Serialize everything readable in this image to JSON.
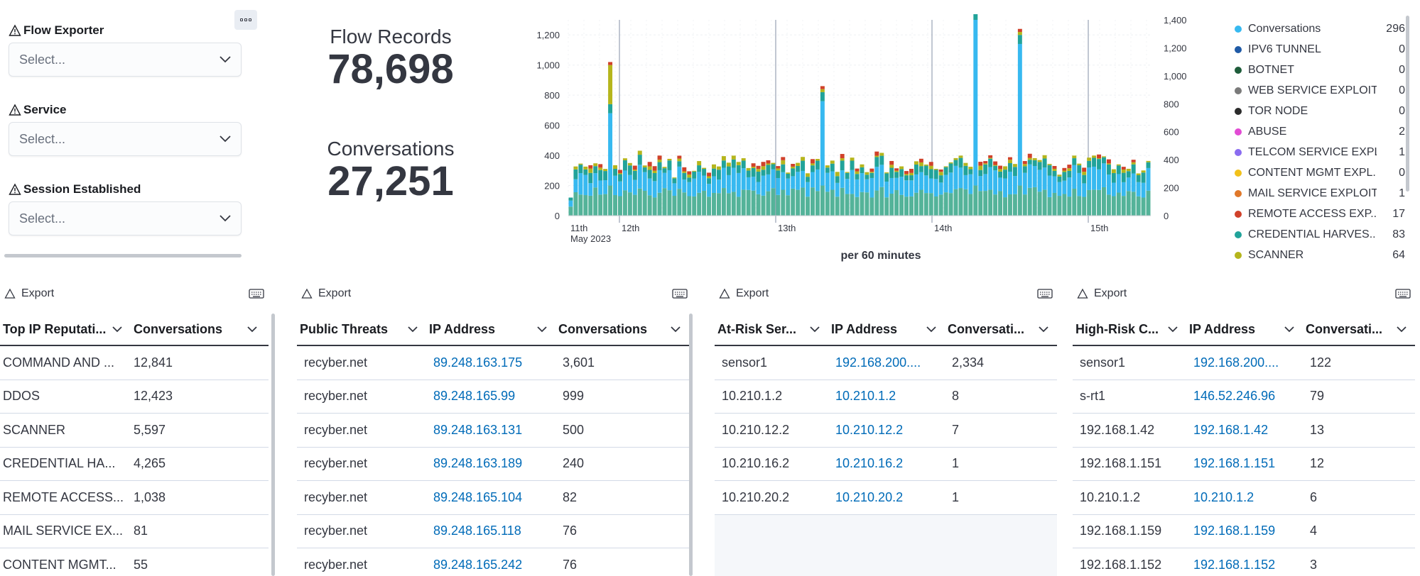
{
  "controls": {
    "exporter": {
      "label": "Flow Exporter",
      "placeholder": "Select..."
    },
    "service": {
      "label": "Service",
      "placeholder": "Select..."
    },
    "session": {
      "label": "Session Established",
      "placeholder": "Select..."
    }
  },
  "metrics": {
    "flow_records": {
      "label": "Flow Records",
      "value": "78,698"
    },
    "conversations": {
      "label": "Conversations",
      "value": "27,251"
    }
  },
  "chart_data": {
    "type": "bar",
    "stacked": true,
    "xlabel": "per 60 minutes",
    "x_ticks": [
      "11th",
      "12th",
      "13th",
      "14th",
      "15th"
    ],
    "x_sub_tick": "May 2023",
    "y_left_ticks": [
      0,
      200,
      400,
      600,
      800,
      1000,
      1200
    ],
    "y_right_ticks": [
      0,
      200,
      400,
      600,
      800,
      1000,
      1200,
      1400
    ],
    "ylim": [
      0,
      1400
    ],
    "spikes_approx": [
      {
        "near": "12th",
        "value": 1020
      },
      {
        "near": "13th",
        "value": 860
      },
      {
        "near": "14th",
        "value": 1400
      },
      {
        "near": "15th",
        "value": 1240
      }
    ],
    "series_colors": {
      "green": "#54b399",
      "blue": "#37b9f0",
      "teal": "#21a39a",
      "olive": "#b5b51c",
      "red": "#d0412a"
    },
    "legend": [
      {
        "name": "Conversations",
        "value": "296",
        "color": "#37b9f0"
      },
      {
        "name": "IPV6 TUNNEL",
        "value": "0",
        "color": "#1f5aa6"
      },
      {
        "name": "BOTNET",
        "value": "0",
        "color": "#1e5c3a"
      },
      {
        "name": "WEB SERVICE EXPLOIT",
        "value": "0",
        "color": "#7a7a7a"
      },
      {
        "name": "TOR NODE",
        "value": "0",
        "color": "#2b2b2b"
      },
      {
        "name": "ABUSE",
        "value": "2",
        "color": "#e24bd4"
      },
      {
        "name": "TELCOM SERVICE EXPL...",
        "value": "1",
        "color": "#8a6cf0"
      },
      {
        "name": "CONTENT MGMT EXPL...",
        "value": "0",
        "color": "#f2c11a"
      },
      {
        "name": "MAIL SERVICE EXPLOIT",
        "value": "1",
        "color": "#e0782a"
      },
      {
        "name": "REMOTE ACCESS EXP...",
        "value": "17",
        "color": "#d0412a"
      },
      {
        "name": "CREDENTIAL HARVES...",
        "value": "83",
        "color": "#21a39a"
      },
      {
        "name": "SCANNER",
        "value": "64",
        "color": "#b5b51c"
      }
    ]
  },
  "tables": [
    {
      "export_label": "Export",
      "columns": [
        "Top IP Reputati...",
        "Conversations"
      ],
      "rows": [
        [
          "COMMAND AND ...",
          "12,841"
        ],
        [
          "DDOS",
          "12,423"
        ],
        [
          "SCANNER",
          "5,597"
        ],
        [
          "CREDENTIAL HA...",
          "4,265"
        ],
        [
          "REMOTE ACCESS...",
          "1,038"
        ],
        [
          "MAIL SERVICE EX...",
          "81"
        ],
        [
          "CONTENT MGMT...",
          "55"
        ]
      ]
    },
    {
      "export_label": "Export",
      "columns": [
        "Public Threats",
        "IP Address",
        "Conversations"
      ],
      "rows": [
        [
          "recyber.net",
          "89.248.163.175",
          "3,601"
        ],
        [
          "recyber.net",
          "89.248.165.99",
          "999"
        ],
        [
          "recyber.net",
          "89.248.163.131",
          "500"
        ],
        [
          "recyber.net",
          "89.248.163.189",
          "240"
        ],
        [
          "recyber.net",
          "89.248.165.104",
          "82"
        ],
        [
          "recyber.net",
          "89.248.165.118",
          "76"
        ],
        [
          "recyber.net",
          "89.248.165.242",
          "76"
        ]
      ]
    },
    {
      "export_label": "Export",
      "columns": [
        "At-Risk Ser...",
        "IP Address",
        "Conversati..."
      ],
      "rows": [
        [
          "sensor1",
          "192.168.200....",
          "2,334"
        ],
        [
          "10.210.1.2",
          "10.210.1.2",
          "8"
        ],
        [
          "10.210.12.2",
          "10.210.12.2",
          "7"
        ],
        [
          "10.210.16.2",
          "10.210.16.2",
          "1"
        ],
        [
          "10.210.20.2",
          "10.210.20.2",
          "1"
        ]
      ]
    },
    {
      "export_label": "Export",
      "columns": [
        "High-Risk C...",
        "IP Address",
        "Conversati..."
      ],
      "rows": [
        [
          "sensor1",
          "192.168.200....",
          "122"
        ],
        [
          "s-rt1",
          "146.52.246.96",
          "79"
        ],
        [
          "192.168.1.42",
          "192.168.1.42",
          "13"
        ],
        [
          "192.168.1.151",
          "192.168.1.151",
          "12"
        ],
        [
          "10.210.1.2",
          "10.210.1.2",
          "6"
        ],
        [
          "192.168.1.159",
          "192.168.1.159",
          "4"
        ],
        [
          "192.168.1.152",
          "192.168.1.152",
          "3"
        ]
      ]
    }
  ]
}
